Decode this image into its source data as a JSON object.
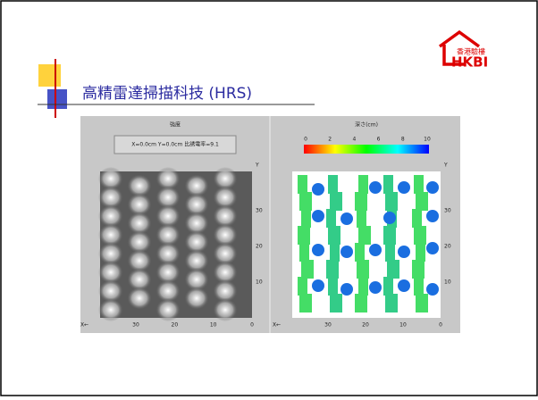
{
  "logo": {
    "zh": "香港驗樓",
    "en": "HKBI"
  },
  "title": "高精雷達掃描科技 (HRS)",
  "panels": [
    {
      "title": "強度",
      "info": "X=0.0cm Y=0.0cm 比誘電率=9.1",
      "y_label": "Y",
      "y_ticks": [
        "30",
        "20",
        "10"
      ],
      "x_label": "X←",
      "x_ticks": [
        "30",
        "20",
        "10",
        "0"
      ]
    },
    {
      "title": "深さ(cm)",
      "scale_ticks": [
        "0",
        "2",
        "4",
        "6",
        "8",
        "10"
      ],
      "y_label": "Y",
      "y_ticks": [
        "30",
        "20",
        "10"
      ],
      "x_label": "X←",
      "x_ticks": [
        "30",
        "20",
        "10",
        "0"
      ]
    }
  ]
}
